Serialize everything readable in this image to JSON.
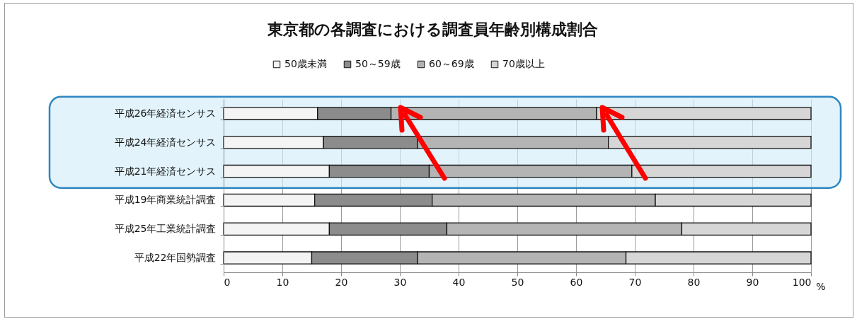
{
  "chart_data": {
    "type": "bar",
    "orientation": "horizontal",
    "stacked": true,
    "title": "東京都の各調査における調査員年齢別構成割合",
    "xlabel": "%",
    "categories": [
      "平成26年経済センサス",
      "平成24年経済センサス",
      "平成21年経済センサス",
      "平成19年商業統計調査",
      "平成25年工業統計調査",
      "平成22年国勢調査"
    ],
    "series": [
      {
        "name": "50歳未満",
        "color": "#f4f4f4",
        "values": [
          16,
          17,
          18,
          15.5,
          18,
          15
        ]
      },
      {
        "name": "50～59歳",
        "color": "#8c8c8c",
        "values": [
          12.5,
          16,
          17,
          20,
          20,
          18
        ]
      },
      {
        "name": "60～69歳",
        "color": "#b4b4b4",
        "values": [
          35,
          32.5,
          34.5,
          38,
          40,
          35.5
        ]
      },
      {
        "name": "70歳以上",
        "color": "#d6d6d6",
        "values": [
          36.5,
          34.5,
          30.5,
          26.5,
          22,
          31.5
        ]
      }
    ],
    "xlim": [
      0,
      100
    ],
    "xticks": [
      0,
      10,
      20,
      30,
      40,
      50,
      60,
      70,
      80,
      90,
      100
    ],
    "bands": [
      {
        "axis": "y",
        "from": "平成26年経済センサス",
        "to": "平成21年経済センサス",
        "color": "#d2ecf9"
      }
    ],
    "grid": "x",
    "legend": "top"
  }
}
